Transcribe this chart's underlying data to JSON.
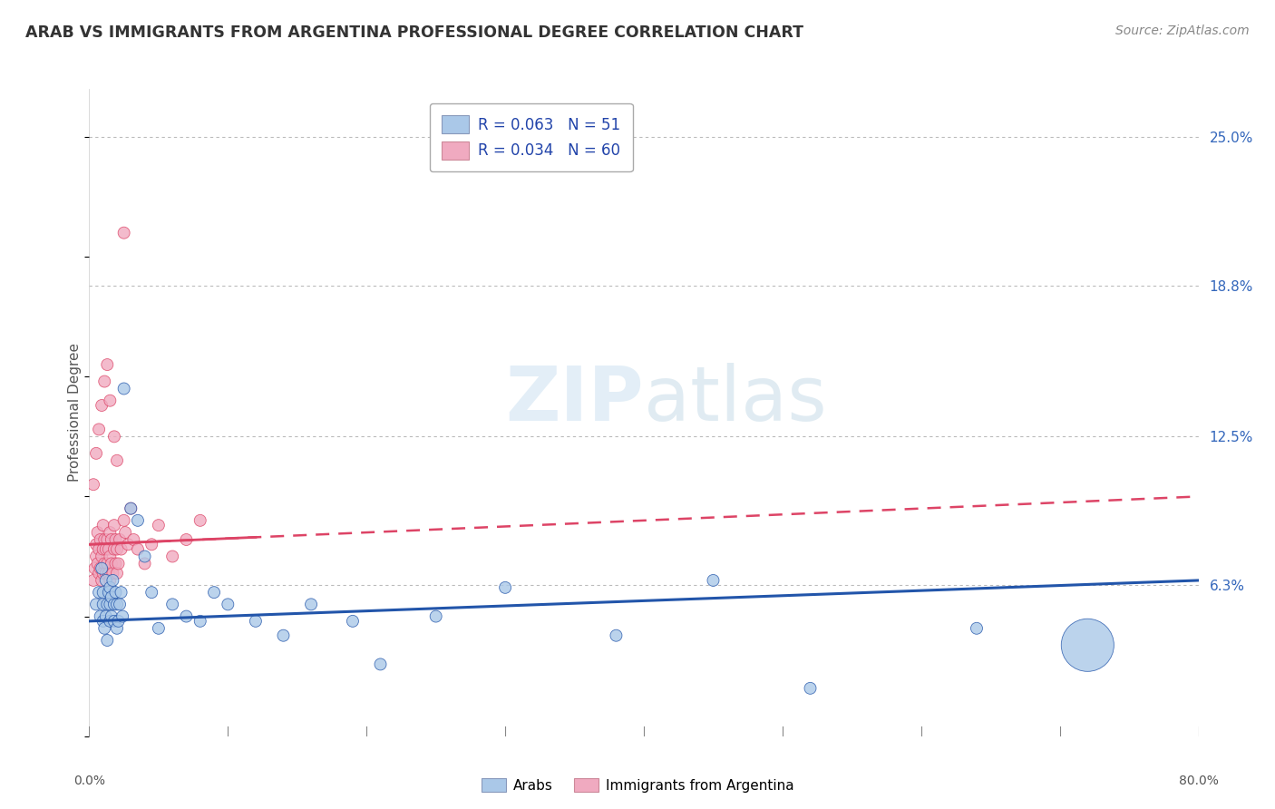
{
  "title": "ARAB VS IMMIGRANTS FROM ARGENTINA PROFESSIONAL DEGREE CORRELATION CHART",
  "source": "Source: ZipAtlas.com",
  "ylabel": "Professional Degree",
  "right_ytick_labels": [
    "6.3%",
    "12.5%",
    "18.8%",
    "25.0%"
  ],
  "right_ytick_values": [
    0.063,
    0.125,
    0.188,
    0.25
  ],
  "xmin": 0.0,
  "xmax": 0.8,
  "ymin": 0.0,
  "ymax": 0.27,
  "legend_arab_r": "R = 0.063",
  "legend_arab_n": "N = 51",
  "legend_arg_r": "R = 0.034",
  "legend_arg_n": "N = 60",
  "arab_color": "#aac8e8",
  "arg_color": "#f0aac0",
  "arab_line_color": "#2255aa",
  "arg_line_color": "#dd4466",
  "watermark_zip": "ZIP",
  "watermark_atlas": "atlas",
  "background_color": "#ffffff",
  "grid_color": "#bbbbbb",
  "title_color": "#333333",
  "source_color": "#888888",
  "arab_trend_x0": 0.0,
  "arab_trend_y0": 0.048,
  "arab_trend_x1": 0.8,
  "arab_trend_y1": 0.065,
  "arg_trend_x0": 0.0,
  "arg_trend_y0": 0.08,
  "arg_trend_x1": 0.8,
  "arg_trend_y1": 0.1,
  "arab_x": [
    0.005,
    0.007,
    0.008,
    0.009,
    0.01,
    0.01,
    0.01,
    0.011,
    0.012,
    0.012,
    0.013,
    0.013,
    0.014,
    0.015,
    0.015,
    0.015,
    0.016,
    0.016,
    0.017,
    0.018,
    0.018,
    0.019,
    0.02,
    0.02,
    0.021,
    0.022,
    0.023,
    0.024,
    0.025,
    0.03,
    0.035,
    0.04,
    0.045,
    0.05,
    0.06,
    0.07,
    0.08,
    0.09,
    0.1,
    0.12,
    0.14,
    0.16,
    0.19,
    0.21,
    0.25,
    0.3,
    0.38,
    0.45,
    0.52,
    0.64,
    0.72
  ],
  "arab_y": [
    0.055,
    0.06,
    0.05,
    0.07,
    0.048,
    0.055,
    0.06,
    0.045,
    0.05,
    0.065,
    0.04,
    0.055,
    0.06,
    0.048,
    0.055,
    0.062,
    0.05,
    0.058,
    0.065,
    0.048,
    0.055,
    0.06,
    0.045,
    0.055,
    0.048,
    0.055,
    0.06,
    0.05,
    0.145,
    0.095,
    0.09,
    0.075,
    0.06,
    0.045,
    0.055,
    0.05,
    0.048,
    0.06,
    0.055,
    0.048,
    0.042,
    0.055,
    0.048,
    0.03,
    0.05,
    0.062,
    0.042,
    0.065,
    0.02,
    0.045,
    0.038
  ],
  "arab_size": [
    25,
    25,
    25,
    25,
    25,
    25,
    25,
    25,
    25,
    25,
    25,
    25,
    25,
    25,
    25,
    25,
    25,
    25,
    25,
    25,
    25,
    25,
    25,
    25,
    25,
    25,
    25,
    25,
    25,
    25,
    25,
    25,
    25,
    25,
    25,
    25,
    25,
    25,
    25,
    25,
    25,
    25,
    25,
    25,
    25,
    25,
    25,
    25,
    25,
    25,
    500
  ],
  "arg_x": [
    0.003,
    0.004,
    0.005,
    0.005,
    0.006,
    0.006,
    0.007,
    0.007,
    0.008,
    0.008,
    0.009,
    0.009,
    0.01,
    0.01,
    0.01,
    0.011,
    0.011,
    0.012,
    0.012,
    0.013,
    0.013,
    0.014,
    0.014,
    0.015,
    0.015,
    0.015,
    0.016,
    0.016,
    0.017,
    0.018,
    0.018,
    0.019,
    0.019,
    0.02,
    0.02,
    0.021,
    0.022,
    0.023,
    0.025,
    0.026,
    0.028,
    0.03,
    0.032,
    0.035,
    0.04,
    0.045,
    0.05,
    0.06,
    0.07,
    0.08,
    0.003,
    0.005,
    0.007,
    0.009,
    0.011,
    0.013,
    0.015,
    0.018,
    0.02,
    0.025
  ],
  "arg_y": [
    0.065,
    0.07,
    0.075,
    0.08,
    0.072,
    0.085,
    0.068,
    0.078,
    0.07,
    0.082,
    0.065,
    0.075,
    0.068,
    0.078,
    0.088,
    0.072,
    0.082,
    0.068,
    0.078,
    0.072,
    0.082,
    0.068,
    0.078,
    0.065,
    0.075,
    0.085,
    0.072,
    0.082,
    0.068,
    0.078,
    0.088,
    0.072,
    0.082,
    0.068,
    0.078,
    0.072,
    0.082,
    0.078,
    0.09,
    0.085,
    0.08,
    0.095,
    0.082,
    0.078,
    0.072,
    0.08,
    0.088,
    0.075,
    0.082,
    0.09,
    0.105,
    0.118,
    0.128,
    0.138,
    0.148,
    0.155,
    0.14,
    0.125,
    0.115,
    0.21
  ],
  "arg_size": [
    25,
    25,
    25,
    25,
    25,
    25,
    25,
    25,
    25,
    25,
    25,
    25,
    25,
    25,
    25,
    25,
    25,
    25,
    25,
    25,
    25,
    25,
    25,
    25,
    25,
    25,
    25,
    25,
    25,
    25,
    25,
    25,
    25,
    25,
    25,
    25,
    25,
    25,
    25,
    25,
    25,
    25,
    25,
    25,
    25,
    25,
    25,
    25,
    25,
    25,
    25,
    25,
    25,
    25,
    25,
    25,
    25,
    25,
    25,
    25
  ]
}
